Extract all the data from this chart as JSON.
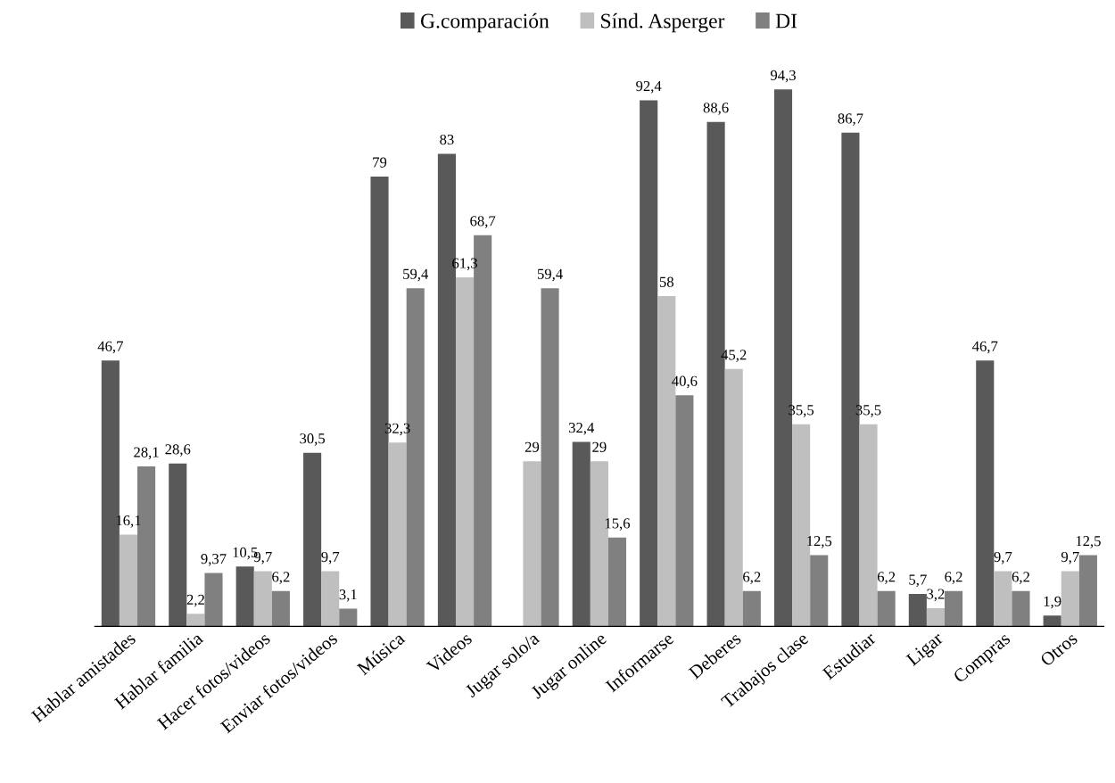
{
  "chart_data": {
    "type": "bar",
    "categories": [
      "Hablar amistades",
      "Hablar familia",
      "Hacer fotos/videos",
      "Enviar fotos/videos",
      "Música",
      "Videos",
      "Jugar solo/a",
      "Jugar online",
      "Informarse",
      "Deberes",
      "Trabajos clase",
      "Estudiar",
      "Ligar",
      "Compras",
      "Otros"
    ],
    "series": [
      {
        "name": "G.comparación",
        "color": "#595959",
        "values": [
          46.7,
          28.6,
          10.5,
          30.5,
          79,
          83,
          null,
          32.4,
          92.4,
          88.6,
          94.3,
          86.7,
          5.7,
          46.7,
          1.9
        ],
        "value_labels": [
          "46,7",
          "28,6",
          "10,5",
          "30,5",
          "79",
          "83",
          null,
          "32,4",
          "92,4",
          "88,6",
          "94,3",
          "86,7",
          "5,7",
          "46,7",
          "1,9"
        ]
      },
      {
        "name": "Sínd. Asperger",
        "color": "#bfbfbf",
        "values": [
          16.1,
          2.2,
          9.7,
          9.7,
          32.3,
          61.3,
          29,
          29,
          58,
          45.2,
          35.5,
          35.5,
          3.2,
          9.7,
          9.7
        ],
        "value_labels": [
          "16,1",
          "2,2",
          "9,7",
          "9,7",
          "32,3",
          "61,3",
          "29",
          "29",
          "58",
          "45,2",
          "35,5",
          "35,5",
          "3,2",
          "9,7",
          "9,7"
        ]
      },
      {
        "name": "DI",
        "color": "#808080",
        "values": [
          28.1,
          9.37,
          6.2,
          3.1,
          59.4,
          68.7,
          59.4,
          15.6,
          40.6,
          6.2,
          12.5,
          6.2,
          6.2,
          6.2,
          12.5
        ],
        "value_labels": [
          "28,1",
          "9,37",
          "6,2",
          "3,1",
          "59,4",
          "68,7",
          "59,4",
          "15,6",
          "40,6",
          "6,2",
          "12,5",
          "6,2",
          "6,2",
          "6,2",
          "12,5"
        ]
      }
    ],
    "legend": "top",
    "grid": false,
    "tick_labels": "x"
  }
}
